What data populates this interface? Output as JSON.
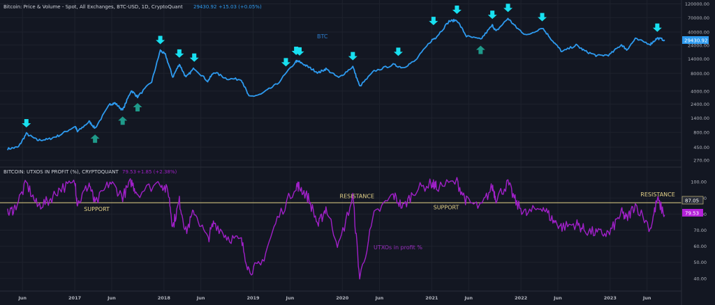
{
  "chart_data": [
    {
      "type": "line",
      "header": {
        "name": "Bitcoin: Price & Volume - Spot, All Exchanges, BTC-USD, 1D, CryptoQuant",
        "price": "29430.92",
        "change": "+15.03 (+0.05%)"
      },
      "series_label": "BTC",
      "scale": "log",
      "ylim": [
        230,
        125000
      ],
      "y_ticks": [
        "120000.00",
        "70000.00",
        "40000.00",
        "24000.00",
        "14000.00",
        "8000.00",
        "4000.00",
        "2400.00",
        "1400.00",
        "800.00",
        "450.00",
        "270.00"
      ],
      "last_value_label": "29430.92",
      "series": [
        {
          "name": "BTC",
          "color": "#2e9bf0",
          "points": [
            [
              "2016-04-01",
              420
            ],
            [
              "2016-05-15",
              450
            ],
            [
              "2016-06-17",
              760
            ],
            [
              "2016-08-01",
              590
            ],
            [
              "2016-09-15",
              610
            ],
            [
              "2016-11-01",
              720
            ],
            [
              "2017-01-03",
              1020
            ],
            [
              "2017-01-12",
              820
            ],
            [
              "2017-03-01",
              1220
            ],
            [
              "2017-03-25",
              940
            ],
            [
              "2017-05-25",
              2400
            ],
            [
              "2017-06-15",
              2500
            ],
            [
              "2017-07-16",
              1900
            ],
            [
              "2017-08-20",
              4100
            ],
            [
              "2017-09-15",
              3200
            ],
            [
              "2017-11-12",
              5800
            ],
            [
              "2017-12-17",
              19500
            ],
            [
              "2018-01-07",
              16500
            ],
            [
              "2018-02-06",
              6900
            ],
            [
              "2018-03-05",
              11500
            ],
            [
              "2018-04-01",
              6800
            ],
            [
              "2018-05-05",
              9800
            ],
            [
              "2018-06-29",
              5900
            ],
            [
              "2018-07-25",
              8400
            ],
            [
              "2018-09-15",
              6500
            ],
            [
              "2018-11-14",
              6300
            ],
            [
              "2018-12-15",
              3200
            ],
            [
              "2019-02-01",
              3500
            ],
            [
              "2019-04-10",
              5300
            ],
            [
              "2019-06-26",
              12800
            ],
            [
              "2019-07-10",
              12500
            ],
            [
              "2019-08-15",
              10200
            ],
            [
              "2019-09-25",
              8200
            ],
            [
              "2019-10-26",
              9500
            ],
            [
              "2019-12-17",
              6700
            ],
            [
              "2020-02-13",
              10400
            ],
            [
              "2020-03-12",
              4800
            ],
            [
              "2020-05-10",
              8700
            ],
            [
              "2020-07-27",
              11200
            ],
            [
              "2020-09-05",
              10000
            ],
            [
              "2020-10-25",
              13000
            ],
            [
              "2020-12-31",
              29000
            ],
            [
              "2021-01-20",
              33000
            ],
            [
              "2021-03-13",
              61000
            ],
            [
              "2021-04-14",
              63500
            ],
            [
              "2021-05-23",
              34000
            ],
            [
              "2021-07-20",
              30000
            ],
            [
              "2021-09-06",
              52000
            ],
            [
              "2021-09-21",
              41000
            ],
            [
              "2021-11-09",
              68000
            ],
            [
              "2021-12-15",
              47000
            ],
            [
              "2022-01-24",
              35000
            ],
            [
              "2022-03-29",
              47500
            ],
            [
              "2022-05-12",
              28000
            ],
            [
              "2022-06-18",
              18500
            ],
            [
              "2022-08-15",
              24000
            ],
            [
              "2022-09-20",
              19000
            ],
            [
              "2022-11-09",
              15800
            ],
            [
              "2022-12-30",
              16500
            ],
            [
              "2023-02-16",
              24500
            ],
            [
              "2023-03-10",
              20000
            ],
            [
              "2023-04-14",
              30500
            ],
            [
              "2023-06-15",
              25000
            ],
            [
              "2023-07-13",
              31500
            ],
            [
              "2023-08-12",
              29430
            ]
          ]
        }
      ],
      "annotations": [
        {
          "type": "top-arrow",
          "date": "2016-06-17",
          "value": 760
        },
        {
          "type": "top-arrow",
          "date": "2017-12-17",
          "value": 19500
        },
        {
          "type": "top-arrow",
          "date": "2018-03-05",
          "value": 11500
        },
        {
          "type": "top-arrow",
          "date": "2018-05-05",
          "value": 9800
        },
        {
          "type": "top-arrow",
          "date": "2019-05-15",
          "value": 8200
        },
        {
          "type": "top-arrow",
          "date": "2019-06-26",
          "value": 12800
        },
        {
          "type": "top-arrow",
          "date": "2019-07-10",
          "value": 12500
        },
        {
          "type": "top-arrow",
          "date": "2020-02-13",
          "value": 10400
        },
        {
          "type": "top-arrow",
          "date": "2020-08-17",
          "value": 12300
        },
        {
          "type": "top-arrow",
          "date": "2021-01-08",
          "value": 41000
        },
        {
          "type": "top-arrow",
          "date": "2021-04-14",
          "value": 63500
        },
        {
          "type": "top-arrow",
          "date": "2021-09-06",
          "value": 52000
        },
        {
          "type": "top-arrow",
          "date": "2021-11-09",
          "value": 68000
        },
        {
          "type": "top-arrow",
          "date": "2022-03-29",
          "value": 47500
        },
        {
          "type": "top-arrow",
          "date": "2023-07-13",
          "value": 31500
        },
        {
          "type": "bottom-arrow",
          "date": "2017-03-25",
          "value": 940
        },
        {
          "type": "bottom-arrow",
          "date": "2017-07-16",
          "value": 1900
        },
        {
          "type": "bottom-arrow",
          "date": "2017-09-15",
          "value": 3200
        },
        {
          "type": "bottom-arrow",
          "date": "2021-07-20",
          "value": 30000
        }
      ]
    },
    {
      "type": "line",
      "header": {
        "name": "BITCOIN: UTXOS IN PROFIT (%), CRYPTOQUANT",
        "value": "79.53",
        "change": "+1.85 (+2.38%)"
      },
      "series_label": "UTXOs in profit %",
      "ylim": [
        33,
        104
      ],
      "y_ticks": [
        "100.00",
        "90.00",
        "80.00",
        "70.00",
        "60.00",
        "50.00",
        "40.00"
      ],
      "last_value_label": "79.53",
      "level_label": "87.05",
      "level": 87.05,
      "series": [
        {
          "name": "UTXOs in profit %",
          "color": "#a020c8",
          "points": [
            [
              "2016-04-01",
              80
            ],
            [
              "2016-05-01",
              84
            ],
            [
              "2016-06-17",
              99
            ],
            [
              "2016-08-01",
              85
            ],
            [
              "2016-09-15",
              88
            ],
            [
              "2016-11-01",
              96
            ],
            [
              "2017-01-03",
              99
            ],
            [
              "2017-01-12",
              86
            ],
            [
              "2017-03-01",
              99
            ],
            [
              "2017-03-25",
              86
            ],
            [
              "2017-05-25",
              100
            ],
            [
              "2017-07-16",
              91
            ],
            [
              "2017-08-20",
              100
            ],
            [
              "2017-09-15",
              93
            ],
            [
              "2017-12-17",
              100
            ],
            [
              "2018-01-20",
              93
            ],
            [
              "2018-02-06",
              72
            ],
            [
              "2018-03-05",
              88
            ],
            [
              "2018-04-01",
              69
            ],
            [
              "2018-05-05",
              82
            ],
            [
              "2018-06-29",
              64
            ],
            [
              "2018-07-25",
              75
            ],
            [
              "2018-09-15",
              66
            ],
            [
              "2018-11-14",
              63
            ],
            [
              "2018-12-15",
              45
            ],
            [
              "2019-02-01",
              48
            ],
            [
              "2019-04-10",
              77
            ],
            [
              "2019-06-26",
              98
            ],
            [
              "2019-07-10",
              97
            ],
            [
              "2019-08-15",
              90
            ],
            [
              "2019-09-25",
              73
            ],
            [
              "2019-10-26",
              84
            ],
            [
              "2019-12-17",
              60
            ],
            [
              "2020-02-13",
              91
            ],
            [
              "2020-03-12",
              40
            ],
            [
              "2020-05-10",
              79
            ],
            [
              "2020-07-27",
              92
            ],
            [
              "2020-09-05",
              84
            ],
            [
              "2020-10-25",
              95
            ],
            [
              "2020-12-31",
              99
            ],
            [
              "2021-01-20",
              97
            ],
            [
              "2021-04-14",
              100
            ],
            [
              "2021-05-23",
              88
            ],
            [
              "2021-07-20",
              84
            ],
            [
              "2021-09-06",
              97
            ],
            [
              "2021-09-21",
              90
            ],
            [
              "2021-11-09",
              99
            ],
            [
              "2021-12-15",
              86
            ],
            [
              "2022-01-24",
              80
            ],
            [
              "2022-03-29",
              85
            ],
            [
              "2022-05-12",
              76
            ],
            [
              "2022-06-18",
              72
            ],
            [
              "2022-08-15",
              74
            ],
            [
              "2022-09-20",
              70
            ],
            [
              "2022-11-09",
              68
            ],
            [
              "2022-12-30",
              68
            ],
            [
              "2023-02-16",
              81
            ],
            [
              "2023-03-10",
              77
            ],
            [
              "2023-04-14",
              86
            ],
            [
              "2023-06-15",
              71
            ],
            [
              "2023-07-13",
              89
            ],
            [
              "2023-08-12",
              79.5
            ]
          ]
        }
      ],
      "annotations": [
        {
          "text": "SUPPORT",
          "date": "2017-04-01",
          "value": 82
        },
        {
          "text": "RESISTANCE",
          "date": "2020-03-01",
          "value": 90
        },
        {
          "text": "SUPPORT",
          "date": "2021-03-01",
          "value": 83
        },
        {
          "text": "RESISTANCE",
          "date": "2023-07-15",
          "value": 91
        }
      ]
    }
  ],
  "x_axis": {
    "ticks": [
      {
        "label": "Jun",
        "date": "2016-06-01"
      },
      {
        "label": "2017",
        "date": "2017-01-01"
      },
      {
        "label": "Jun",
        "date": "2017-06-01"
      },
      {
        "label": "2018",
        "date": "2018-01-01"
      },
      {
        "label": "Jun",
        "date": "2018-06-01"
      },
      {
        "label": "2019",
        "date": "2019-01-01"
      },
      {
        "label": "Jun",
        "date": "2019-06-01"
      },
      {
        "label": "2020",
        "date": "2020-01-01"
      },
      {
        "label": "Jun",
        "date": "2020-06-01"
      },
      {
        "label": "2021",
        "date": "2021-01-01"
      },
      {
        "label": "Jun",
        "date": "2021-06-01"
      },
      {
        "label": "2022",
        "date": "2022-01-01"
      },
      {
        "label": "Jun",
        "date": "2022-06-01"
      },
      {
        "label": "2023",
        "date": "2023-01-01"
      },
      {
        "label": "Jun",
        "date": "2023-06-01"
      }
    ],
    "xlim": [
      "2016-03-01",
      "2023-10-20"
    ]
  },
  "colors": {
    "background": "#131722",
    "top_arrow": "#18e0f0",
    "bottom_arrow": "#1f9a8a",
    "btc_line": "#2e9bf0",
    "utxo_line": "#a020c8",
    "level_line": "#e6d48a",
    "annotation_text": "#e6d48a",
    "price_badge": "#2e9bf0",
    "utxo_badge": "#b422d8"
  }
}
